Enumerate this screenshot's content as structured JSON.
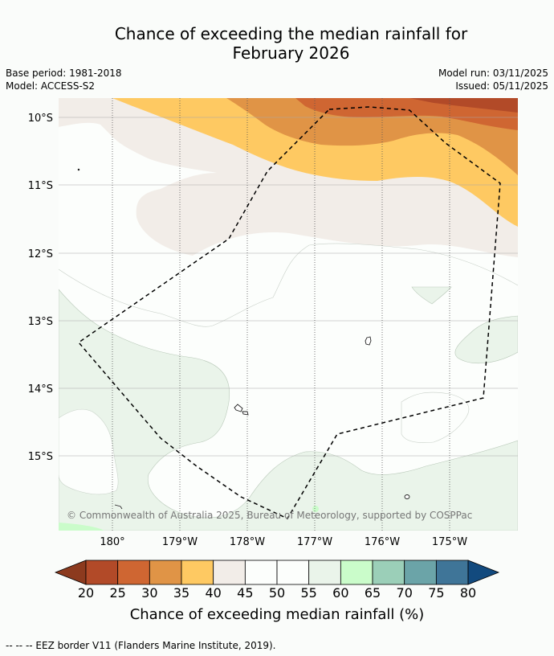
{
  "title": {
    "line1": "Chance of exceeding the median rainfall for",
    "line2": "February 2026"
  },
  "meta": {
    "base_period": "Base period: 1981-2018",
    "model": "Model: ACCESS-S2",
    "model_run": "Model run: 03/11/2025",
    "issued": "Issued: 05/11/2025"
  },
  "map": {
    "lat_labels": [
      "10°S",
      "11°S",
      "12°S",
      "13°S",
      "14°S",
      "15°S"
    ],
    "lon_labels": [
      "180°",
      "179°W",
      "178°W",
      "177°W",
      "176°W",
      "175°W"
    ],
    "copyright": "© Commonwealth of Australia 2025, Bureau of Meteorology, supported by COSPPac"
  },
  "colorbar": {
    "title": "Chance of exceeding median rainfall (%)",
    "ticks": [
      "20",
      "25",
      "30",
      "35",
      "40",
      "45",
      "50",
      "55",
      "60",
      "65",
      "70",
      "75",
      "80"
    ],
    "colors": {
      "under": "#8c3a1e",
      "c20_25": "#b24a28",
      "c25_30": "#cf6632",
      "c30_35": "#e09446",
      "c35_40": "#fec962",
      "c40_45": "#f2ede8",
      "c45_50": "#fcfefc",
      "c50_55": "#fcfefc",
      "c55_60": "#eaf4ea",
      "c60_65": "#cafcca",
      "c65_70": "#9bcfb8",
      "c70_75": "#6ba4a8",
      "c75_80": "#3f7598",
      "over": "#124a7e"
    }
  },
  "footer": "--  --  -- EEZ border V11 (Flanders Marine Institute, 2019)."
}
